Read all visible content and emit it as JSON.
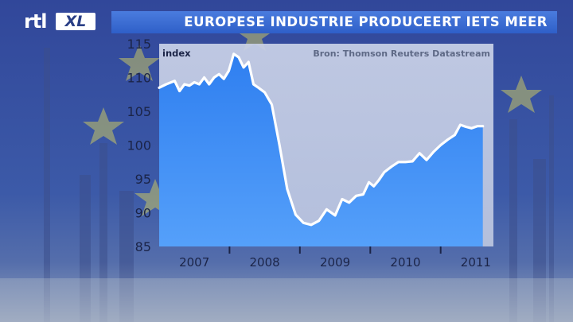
{
  "channel_logo": {
    "part1": "rtl",
    "part2": "XL"
  },
  "headline": "EUROPESE INDUSTRIE PRODUCEERT IETS MEER",
  "colors": {
    "fill": "#3f8ef5",
    "line": "#ffffff",
    "title_bar": "#3a6ad6"
  },
  "chart_data": {
    "type": "area",
    "title": "EUROPESE INDUSTRIE PRODUCEERT IETS MEER",
    "ylabel": "index",
    "source": "Bron: Thomson Reuters Datastream",
    "ylim": [
      85,
      115
    ],
    "yticks": [
      85,
      90,
      95,
      100,
      105,
      110,
      115
    ],
    "xlim": [
      2006.5,
      2011.25
    ],
    "xtick_labels": [
      "2007",
      "2008",
      "2009",
      "2010",
      "2011"
    ],
    "xtick_label_positions": [
      2007,
      2008,
      2009,
      2010,
      2011
    ],
    "xtick_marks": [
      2007.5,
      2008.5,
      2009.5,
      2010.5
    ],
    "grid": false,
    "series": [
      {
        "x": [
          2006.5,
          2006.6,
          2006.72,
          2006.79,
          2006.86,
          2006.93,
          2007.0,
          2007.07,
          2007.14,
          2007.21,
          2007.28,
          2007.35,
          2007.42,
          2007.49,
          2007.56,
          2007.63,
          2007.7,
          2007.77,
          2007.84,
          2007.91,
          2008.0,
          2008.1,
          2008.21,
          2008.32,
          2008.44,
          2008.55,
          2008.66,
          2008.77,
          2008.88,
          2009.0,
          2009.1,
          2009.2,
          2009.3,
          2009.4,
          2009.48,
          2009.55,
          2009.62,
          2009.7,
          2009.8,
          2009.9,
          2010.0,
          2010.1,
          2010.2,
          2010.3,
          2010.4,
          2010.5,
          2010.6,
          2010.7,
          2010.78,
          2010.86,
          2010.94,
          2011.02,
          2011.1
        ],
        "values": [
          108.5,
          109.0,
          109.5,
          108.0,
          109.0,
          108.8,
          109.3,
          109.0,
          110.0,
          109.0,
          110.0,
          110.5,
          109.8,
          111.0,
          113.5,
          113.0,
          111.5,
          112.3,
          109.0,
          108.5,
          107.8,
          106.0,
          100.0,
          93.5,
          89.7,
          88.5,
          88.2,
          88.8,
          90.5,
          89.6,
          92.0,
          91.5,
          92.5,
          92.7,
          94.5,
          93.9,
          94.8,
          96.0,
          96.8,
          97.5,
          97.5,
          97.6,
          98.8,
          97.8,
          99.0,
          100.0,
          100.8,
          101.5,
          103.0,
          102.7,
          102.5,
          102.8,
          102.8
        ]
      }
    ]
  }
}
